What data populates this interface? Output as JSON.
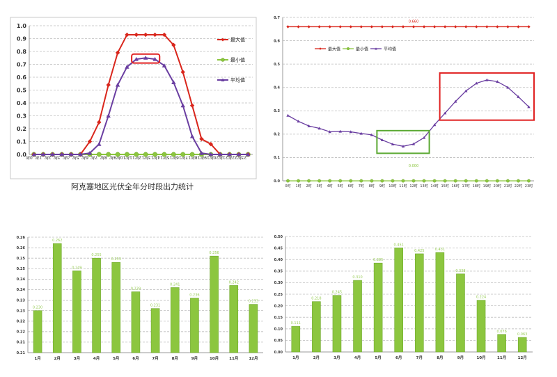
{
  "colors": {
    "max": "#d9261c",
    "min": "#8cc63f",
    "avg": "#6a3ea1",
    "bar": "#8cc63f",
    "highlight_red": "#e02020",
    "highlight_green": "#5aa832"
  },
  "chart_data": [
    {
      "type": "line",
      "caption": "阿克塞地区光伏全年分时段出力统计",
      "categories": [
        "0时",
        "1时",
        "2时",
        "3时",
        "4时",
        "5时",
        "6时",
        "7时",
        "8时",
        "9时",
        "10时",
        "11时",
        "12时",
        "13时",
        "14时",
        "15时",
        "16时",
        "17时",
        "18时",
        "19时",
        "20时",
        "21时",
        "22时",
        "23时"
      ],
      "ylim": [
        0,
        1.0
      ],
      "yticks": [
        "0.0",
        "0.1",
        "0.2",
        "0.3",
        "0.4",
        "0.5",
        "0.6",
        "0.7",
        "0.8",
        "0.9",
        "1.0"
      ],
      "grid": true,
      "legend": "right",
      "series": [
        {
          "name": "最大值",
          "color_key": "max",
          "marker": "diamond",
          "values": [
            0,
            0,
            0,
            0,
            0,
            0,
            0.1,
            0.25,
            0.54,
            0.79,
            0.93,
            0.93,
            0.93,
            0.93,
            0.93,
            0.85,
            0.64,
            0.38,
            0.12,
            0.08,
            0,
            0,
            0,
            0
          ]
        },
        {
          "name": "最小值",
          "color_key": "min",
          "marker": "circle",
          "values": [
            0,
            0,
            0,
            0,
            0,
            0,
            0,
            0,
            0,
            0,
            0,
            0,
            0,
            0,
            0,
            0,
            0,
            0,
            0,
            0,
            0,
            0,
            0,
            0
          ]
        },
        {
          "name": "平均值",
          "color_key": "avg",
          "marker": "triangle",
          "values": [
            0,
            0,
            0,
            0,
            0,
            0,
            0.01,
            0.08,
            0.3,
            0.54,
            0.68,
            0.74,
            0.75,
            0.74,
            0.69,
            0.56,
            0.38,
            0.14,
            0.01,
            0,
            0,
            0,
            0,
            0
          ]
        }
      ],
      "highlight": {
        "color_key": "highlight_red",
        "x_range": [
          "11时",
          "13时"
        ]
      }
    },
    {
      "type": "line",
      "categories": [
        "0时",
        "1时",
        "2时",
        "3时",
        "4时",
        "5时",
        "6时",
        "7时",
        "8时",
        "9时",
        "10时",
        "11时",
        "12时",
        "13时",
        "14时",
        "15时",
        "16时",
        "17时",
        "18时",
        "19时",
        "20时",
        "21时",
        "22时",
        "23时"
      ],
      "ylim": [
        0,
        0.7
      ],
      "yticks": [
        "0.0",
        "0.1",
        "0.2",
        "0.3",
        "0.4",
        "0.5",
        "0.6",
        "0.7"
      ],
      "grid": true,
      "legend": "top-left",
      "series": [
        {
          "name": "最大值",
          "color_key": "max",
          "marker": "diamond",
          "label": "0.660",
          "values": [
            0.66,
            0.66,
            0.66,
            0.66,
            0.66,
            0.66,
            0.66,
            0.66,
            0.66,
            0.66,
            0.66,
            0.66,
            0.66,
            0.66,
            0.66,
            0.66,
            0.66,
            0.66,
            0.66,
            0.66,
            0.66,
            0.66,
            0.66,
            0.66
          ]
        },
        {
          "name": "最小值",
          "color_key": "min",
          "marker": "circle",
          "label": "0.000",
          "values": [
            0,
            0,
            0,
            0,
            0,
            0,
            0,
            0,
            0,
            0,
            0,
            0,
            0,
            0,
            0,
            0,
            0,
            0,
            0,
            0,
            0,
            0,
            0,
            0
          ]
        },
        {
          "name": "平均值",
          "color_key": "avg",
          "marker": "triangle",
          "values": [
            0.28,
            0.255,
            0.235,
            0.225,
            0.21,
            0.212,
            0.21,
            0.203,
            0.197,
            0.175,
            0.157,
            0.148,
            0.158,
            0.185,
            0.24,
            0.29,
            0.34,
            0.385,
            0.418,
            0.432,
            0.425,
            0.4,
            0.36,
            0.317
          ]
        }
      ],
      "highlights": [
        {
          "color_key": "highlight_green",
          "x_range": [
            "9时",
            "13时"
          ]
        },
        {
          "color_key": "highlight_red",
          "x_range": [
            "15时",
            "23时"
          ]
        }
      ]
    },
    {
      "type": "bar",
      "categories": [
        "1月",
        "2月",
        "3月",
        "4月",
        "5月",
        "6月",
        "7月",
        "8月",
        "9月",
        "10月",
        "11月",
        "12月"
      ],
      "ylim": [
        0.21,
        0.265
      ],
      "yticks": [
        "0.21",
        "0.21",
        "0.22",
        "0.22",
        "0.23",
        "0.23",
        "0.24",
        "0.24",
        "0.25",
        "0.25",
        "0.26",
        "0.26"
      ],
      "grid": true,
      "values": [
        0.23,
        0.262,
        0.249,
        0.255,
        0.253,
        0.239,
        0.231,
        0.241,
        0.236,
        0.256,
        0.242,
        0.233
      ],
      "data_labels": [
        "0.230",
        "0.262",
        "0.249",
        "0.255",
        "0.253",
        "0.239",
        "0.231",
        "0.241",
        "0.236",
        "0.256",
        "0.242",
        "0.233"
      ]
    },
    {
      "type": "bar",
      "categories": [
        "1月",
        "2月",
        "3月",
        "4月",
        "5月",
        "6月",
        "7月",
        "8月",
        "9月",
        "10月",
        "11月",
        "12月"
      ],
      "ylim": [
        0,
        0.5
      ],
      "yticks": [
        "0.00",
        "0.05",
        "0.10",
        "0.15",
        "0.20",
        "0.25",
        "0.30",
        "0.35",
        "0.40",
        "0.45",
        "0.50"
      ],
      "grid": true,
      "values": [
        0.111,
        0.218,
        0.245,
        0.31,
        0.385,
        0.451,
        0.425,
        0.431,
        0.338,
        0.224,
        0.076,
        0.063
      ],
      "data_labels": [
        "0.111",
        "0.218",
        "0.245",
        "0.310",
        "0.385",
        "0.451",
        "0.425",
        "0.431",
        "0.338",
        "0.224",
        "0.076",
        "0.063"
      ]
    }
  ]
}
